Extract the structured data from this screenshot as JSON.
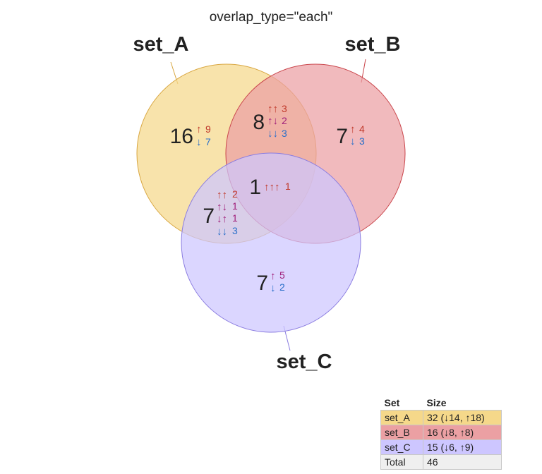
{
  "title": "overlap_type=\"each\"",
  "colors": {
    "set_A": "#f0c860",
    "set_B": "#e06c70",
    "set_C": "#a89cff",
    "up": "#c0392b",
    "down": "#2a6fc9",
    "mixed": "#a0207a",
    "total_row": "#efefef"
  },
  "sets": [
    {
      "name": "set_A",
      "fill": "#f5d88a",
      "stroke": "#d8a640"
    },
    {
      "name": "set_B",
      "fill": "#eba0a3",
      "stroke": "#c9444a"
    },
    {
      "name": "set_C",
      "fill": "#cdc6ff",
      "stroke": "#8a7ce0"
    }
  ],
  "regions": [
    {
      "id": "only-A",
      "count": "16",
      "details": [
        {
          "arrows": "↑",
          "value": "9",
          "tone": "up"
        },
        {
          "arrows": "↓",
          "value": "7",
          "tone": "down"
        }
      ]
    },
    {
      "id": "A-and-B",
      "count": "8",
      "details": [
        {
          "arrows": "↑↑",
          "value": "3",
          "tone": "up"
        },
        {
          "arrows": "↑↓",
          "value": "2",
          "tone": "mixed"
        },
        {
          "arrows": "↓↓",
          "value": "3",
          "tone": "down"
        }
      ]
    },
    {
      "id": "only-B",
      "count": "7",
      "details": [
        {
          "arrows": "↑",
          "value": "4",
          "tone": "up"
        },
        {
          "arrows": "↓",
          "value": "3",
          "tone": "down"
        }
      ]
    },
    {
      "id": "A-B-C",
      "count": "1",
      "details": [
        {
          "arrows": "↑↑↑",
          "value": "1",
          "tone": "up"
        }
      ]
    },
    {
      "id": "A-and-C",
      "count": "7",
      "details": [
        {
          "arrows": "↑↑",
          "value": "2",
          "tone": "up"
        },
        {
          "arrows": "↑↓",
          "value": "1",
          "tone": "mixed"
        },
        {
          "arrows": "↓↑",
          "value": "1",
          "tone": "mixed"
        },
        {
          "arrows": "↓↓",
          "value": "3",
          "tone": "down"
        }
      ]
    },
    {
      "id": "only-C",
      "count": "7",
      "details": [
        {
          "arrows": "↑",
          "value": "5",
          "tone": "mixed"
        },
        {
          "arrows": "↓",
          "value": "2",
          "tone": "down"
        }
      ]
    }
  ],
  "legend": {
    "headers": [
      "Set",
      "Size"
    ],
    "rows": [
      {
        "set": "set_A",
        "size": "32 (↓14, ↑18)",
        "color": "#f5d88a"
      },
      {
        "set": "set_B",
        "size": "16 (↓8, ↑8)",
        "color": "#eba0a3"
      },
      {
        "set": "set_C",
        "size": "15 (↓6, ↑9)",
        "color": "#cdc6ff"
      },
      {
        "set": "Total",
        "size": "46",
        "color": "#efefef"
      }
    ]
  }
}
